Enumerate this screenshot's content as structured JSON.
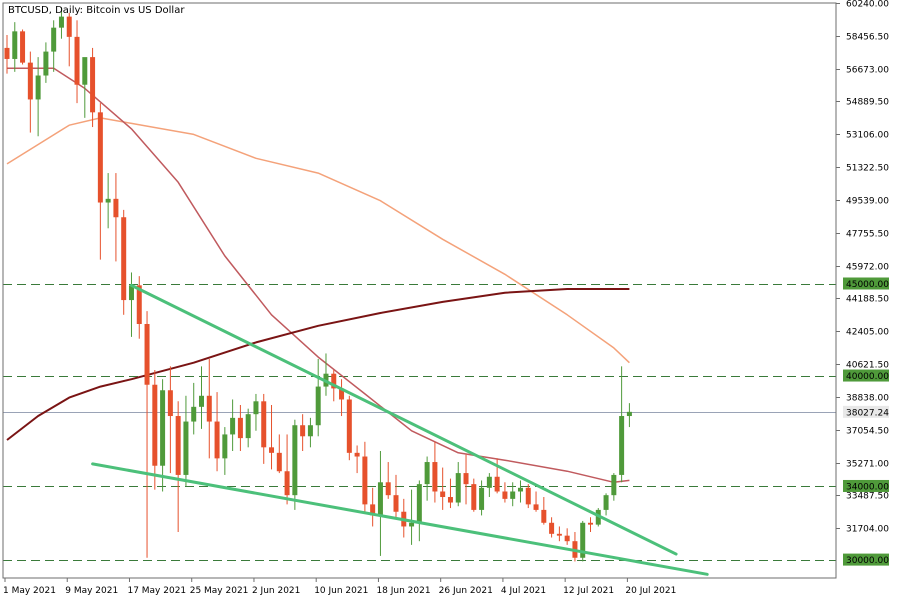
{
  "chart_data": {
    "type": "candlestick",
    "title": "BTCUSD, Daily:  Bitcoin vs US Dollar",
    "colors": {
      "up": "#4f9a3a",
      "down": "#e6512c",
      "ma_orange": "#f4a27a",
      "ma_rose": "#c05a5e",
      "ma_maroon": "#7a1414",
      "trend": "#4cc07a",
      "level": "#3a7a3a",
      "tag_bg": "#4f9a3a",
      "current_tag_bg": "#e8e8e8",
      "current_line": "#9aa3b6",
      "border": "#6e6e6e"
    },
    "y_range": [
      29000,
      60240
    ],
    "y_ticks": [
      {
        "label": "60240.00",
        "value": 60240
      },
      {
        "label": "58456.50",
        "value": 58456.5
      },
      {
        "label": "56673.00",
        "value": 56673
      },
      {
        "label": "54889.50",
        "value": 54889.5
      },
      {
        "label": "53106.00",
        "value": 53106
      },
      {
        "label": "51322.50",
        "value": 51322.5
      },
      {
        "label": "49539.00",
        "value": 49539
      },
      {
        "label": "47755.50",
        "value": 47755.5
      },
      {
        "label": "45972.00",
        "value": 45972
      },
      {
        "label": "44188.50",
        "value": 44188.5
      },
      {
        "label": "42405.00",
        "value": 42405
      },
      {
        "label": "40621.50",
        "value": 40621.5
      },
      {
        "label": "38838.00",
        "value": 38838
      },
      {
        "label": "37054.50",
        "value": 37054.5
      },
      {
        "label": "35271.00",
        "value": 35271
      },
      {
        "label": "33487.50",
        "value": 33487.5
      },
      {
        "label": "31704.00",
        "value": 31704
      }
    ],
    "x_labels": [
      {
        "label": "1 May 2021",
        "day": 0
      },
      {
        "label": "9 May 2021",
        "day": 8
      },
      {
        "label": "17 May 2021",
        "day": 16
      },
      {
        "label": "25 May 2021",
        "day": 24
      },
      {
        "label": "2 Jun 2021",
        "day": 32
      },
      {
        "label": "10 Jun 2021",
        "day": 40
      },
      {
        "label": "18 Jun 2021",
        "day": 48
      },
      {
        "label": "26 Jun 2021",
        "day": 56
      },
      {
        "label": "4 Jul 2021",
        "day": 64
      },
      {
        "label": "12 Jul 2021",
        "day": 72
      },
      {
        "label": "20 Jul 2021",
        "day": 80
      }
    ],
    "levels": [
      {
        "value": 45000,
        "label": "45000.00"
      },
      {
        "value": 40000,
        "label": "40000.00"
      },
      {
        "value": 34000,
        "label": "34000.00"
      },
      {
        "value": 30000,
        "label": "30000.00"
      }
    ],
    "current_price": {
      "value": 38027.24,
      "label": "38027.24"
    },
    "ohlc": [
      [
        57800,
        58500,
        56400,
        57200
      ],
      [
        57200,
        59200,
        56500,
        58700
      ],
      [
        58700,
        58800,
        56900,
        57000
      ],
      [
        57000,
        57600,
        53200,
        55000
      ],
      [
        55000,
        57300,
        53000,
        56300
      ],
      [
        56300,
        58100,
        55900,
        57600
      ],
      [
        57600,
        59300,
        56500,
        58900
      ],
      [
        58900,
        60000,
        58300,
        59500
      ],
      [
        59500,
        59700,
        56800,
        58400
      ],
      [
        58400,
        59300,
        54800,
        55800
      ],
      [
        55800,
        57000,
        54000,
        57300
      ],
      [
        57300,
        57800,
        53500,
        54300
      ],
      [
        54300,
        54800,
        46300,
        49400
      ],
      [
        49400,
        51000,
        48000,
        49600
      ],
      [
        49600,
        51000,
        46200,
        48600
      ],
      [
        48600,
        49000,
        43300,
        44100
      ],
      [
        44100,
        45600,
        42100,
        44900
      ],
      [
        44900,
        45400,
        42000,
        42800
      ],
      [
        42800,
        43500,
        30100,
        39500
      ],
      [
        39500,
        40300,
        33800,
        35100
      ],
      [
        35100,
        39800,
        33700,
        39200
      ],
      [
        39200,
        40500,
        34700,
        37800
      ],
      [
        37800,
        38600,
        31500,
        34600
      ],
      [
        34600,
        38900,
        34000,
        37500
      ],
      [
        37500,
        39600,
        36800,
        38300
      ],
      [
        38300,
        40500,
        37100,
        38900
      ],
      [
        38900,
        40900,
        35500,
        37500
      ],
      [
        37500,
        39100,
        34800,
        35500
      ],
      [
        35500,
        37200,
        34600,
        36800
      ],
      [
        36800,
        38700,
        35900,
        37700
      ],
      [
        37700,
        38400,
        35900,
        36600
      ],
      [
        36600,
        38200,
        36100,
        37900
      ],
      [
        37900,
        39000,
        37000,
        38600
      ],
      [
        38600,
        39000,
        35200,
        36100
      ],
      [
        36100,
        38400,
        34900,
        35800
      ],
      [
        35800,
        36800,
        34700,
        34800
      ],
      [
        34800,
        36800,
        33000,
        33500
      ],
      [
        33500,
        37600,
        32700,
        37300
      ],
      [
        37300,
        37900,
        35900,
        36700
      ],
      [
        36700,
        37700,
        36100,
        37300
      ],
      [
        37300,
        40900,
        36700,
        39400
      ],
      [
        39400,
        41200,
        38900,
        40100
      ],
      [
        40100,
        40300,
        38600,
        39300
      ],
      [
        39300,
        39800,
        37800,
        38700
      ],
      [
        38700,
        38900,
        35400,
        35800
      ],
      [
        35800,
        36200,
        34700,
        35600
      ],
      [
        35600,
        36400,
        32600,
        33000
      ],
      [
        33000,
        33900,
        31800,
        32400
      ],
      [
        32400,
        35900,
        30200,
        34200
      ],
      [
        34200,
        35300,
        33300,
        33500
      ],
      [
        33500,
        34600,
        32200,
        32600
      ],
      [
        32600,
        33300,
        31200,
        31800
      ],
      [
        31800,
        33800,
        30800,
        32000
      ],
      [
        32000,
        34300,
        31000,
        34100
      ],
      [
        34100,
        35600,
        33200,
        35300
      ],
      [
        35300,
        36400,
        33100,
        33700
      ],
      [
        33700,
        35000,
        32700,
        33400
      ],
      [
        33400,
        34400,
        32800,
        33100
      ],
      [
        33100,
        35300,
        32900,
        34700
      ],
      [
        34700,
        35700,
        33000,
        34100
      ],
      [
        34100,
        34400,
        32600,
        32700
      ],
      [
        32700,
        34300,
        32400,
        33900
      ],
      [
        33900,
        34700,
        33400,
        34500
      ],
      [
        34500,
        35500,
        33600,
        33700
      ],
      [
        33700,
        34200,
        33100,
        33300
      ],
      [
        33300,
        34200,
        32900,
        33700
      ],
      [
        33700,
        34300,
        33100,
        33900
      ],
      [
        33900,
        34100,
        32800,
        33000
      ],
      [
        33000,
        33700,
        32600,
        32700
      ],
      [
        32700,
        33400,
        31900,
        32000
      ],
      [
        32000,
        32300,
        31200,
        31400
      ],
      [
        31400,
        31800,
        31000,
        31300
      ],
      [
        31300,
        31700,
        30800,
        31000
      ],
      [
        31000,
        31500,
        29900,
        30100
      ],
      [
        30100,
        32100,
        29900,
        32000
      ],
      [
        32000,
        32300,
        31500,
        31900
      ],
      [
        31900,
        32800,
        31800,
        32700
      ],
      [
        32700,
        33600,
        32400,
        33500
      ],
      [
        33500,
        34700,
        33200,
        34600
      ],
      [
        34600,
        40500,
        34200,
        37800
      ],
      [
        37800,
        38500,
        37200,
        38027
      ]
    ],
    "ma_orange": [
      [
        0,
        51500
      ],
      [
        8,
        53600
      ],
      [
        12,
        54000
      ],
      [
        16,
        53700
      ],
      [
        24,
        53100
      ],
      [
        32,
        51800
      ],
      [
        40,
        51000
      ],
      [
        48,
        49500
      ],
      [
        56,
        47400
      ],
      [
        64,
        45500
      ],
      [
        72,
        43300
      ],
      [
        78,
        41500
      ],
      [
        80,
        40700
      ]
    ],
    "ma_rose": [
      [
        0,
        56700
      ],
      [
        6,
        56700
      ],
      [
        10,
        55600
      ],
      [
        16,
        53400
      ],
      [
        22,
        50500
      ],
      [
        28,
        46500
      ],
      [
        34,
        43300
      ],
      [
        40,
        41000
      ],
      [
        46,
        39000
      ],
      [
        52,
        37000
      ],
      [
        58,
        35800
      ],
      [
        64,
        35400
      ],
      [
        72,
        34800
      ],
      [
        78,
        34200
      ],
      [
        80,
        34300
      ]
    ],
    "ma_maroon": [
      [
        0,
        36500
      ],
      [
        4,
        37800
      ],
      [
        8,
        38800
      ],
      [
        12,
        39400
      ],
      [
        16,
        39800
      ],
      [
        24,
        40700
      ],
      [
        32,
        41800
      ],
      [
        40,
        42700
      ],
      [
        48,
        43400
      ],
      [
        56,
        44000
      ],
      [
        64,
        44500
      ],
      [
        72,
        44700
      ],
      [
        80,
        44700
      ]
    ],
    "trendlines": [
      [
        [
          16,
          44900
        ],
        [
          86,
          30300
        ]
      ],
      [
        [
          11,
          35200
        ],
        [
          90,
          29200
        ]
      ]
    ]
  }
}
